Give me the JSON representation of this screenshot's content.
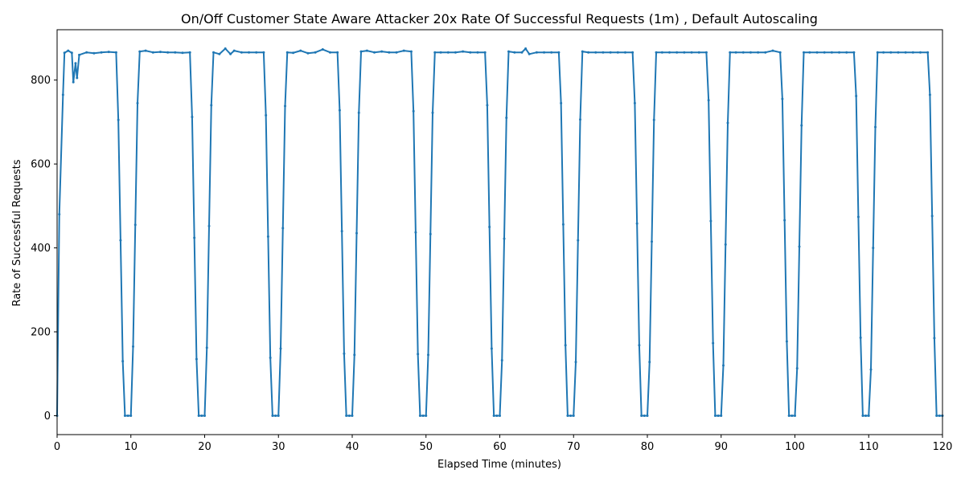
{
  "chart_data": {
    "type": "line",
    "title": "On/Off Customer State Aware Attacker 20x Rate Of Successful Requests (1m) , Default Autoscaling",
    "xlabel": "Elapsed Time (minutes)",
    "ylabel": "Rate of Successful Requests",
    "xlim": [
      0,
      120
    ],
    "ylim": [
      -45,
      920
    ],
    "xticks": [
      0,
      10,
      20,
      30,
      40,
      50,
      60,
      70,
      80,
      90,
      100,
      110,
      120
    ],
    "yticks": [
      0,
      200,
      400,
      600,
      800
    ],
    "grid": false,
    "legend": "none",
    "series": [
      {
        "color": "#1f77b4",
        "marker": "dot",
        "x": [
          0,
          0.3,
          0.8,
          1.0,
          1.5,
          2.0,
          2.2,
          2.5,
          2.7,
          3.0,
          4.0,
          5.0,
          6.0,
          7.0,
          8.0,
          8.3,
          8.6,
          8.9,
          9.2,
          9.6,
          10.0,
          10.3,
          10.6,
          10.9,
          11.2,
          12,
          13,
          14,
          15,
          16,
          17,
          18,
          18.3,
          18.6,
          18.9,
          19.2,
          19.6,
          20.0,
          20.3,
          20.6,
          20.9,
          21.2,
          22,
          22.8,
          23.5,
          24,
          25,
          26,
          27,
          28,
          28.3,
          28.6,
          28.9,
          29.2,
          29.6,
          30.0,
          30.3,
          30.6,
          30.9,
          31.2,
          32,
          33,
          34,
          35,
          36,
          37,
          38,
          38.3,
          38.6,
          38.9,
          39.2,
          39.6,
          40.0,
          40.3,
          40.6,
          40.9,
          41.2,
          42,
          43,
          44,
          45,
          46,
          47,
          48,
          48.3,
          48.6,
          48.9,
          49.2,
          49.6,
          50.0,
          50.3,
          50.6,
          50.9,
          51.2,
          52,
          53,
          54,
          55,
          56,
          57,
          58,
          58.3,
          58.6,
          58.9,
          59.2,
          59.6,
          60.0,
          60.3,
          60.6,
          60.9,
          61.2,
          62,
          63,
          63.5,
          64,
          65,
          66,
          67,
          68,
          68.3,
          68.6,
          68.9,
          69.2,
          69.6,
          70.0,
          70.3,
          70.6,
          70.9,
          71.2,
          72,
          73,
          74,
          75,
          76,
          77,
          78,
          78.3,
          78.6,
          78.9,
          79.2,
          79.6,
          80.0,
          80.3,
          80.6,
          80.9,
          81.2,
          82,
          83,
          84,
          85,
          86,
          87,
          88,
          88.3,
          88.6,
          88.9,
          89.2,
          89.6,
          90.0,
          90.3,
          90.6,
          90.9,
          91.2,
          92,
          93,
          94,
          95,
          96,
          97,
          98,
          98.3,
          98.6,
          98.9,
          99.2,
          99.6,
          100.0,
          100.3,
          100.6,
          100.9,
          101.2,
          102,
          103,
          104,
          105,
          106,
          107,
          108,
          108.3,
          108.6,
          108.9,
          109.2,
          109.6,
          110.0,
          110.3,
          110.6,
          110.9,
          111.2,
          112,
          113,
          114,
          115,
          116,
          117,
          118,
          118.3,
          118.6,
          118.9,
          119.2,
          119.6,
          120.0
        ],
        "y": [
          0,
          480,
          765,
          865,
          870,
          865,
          795,
          840,
          805,
          860,
          866,
          864,
          866,
          867,
          866,
          705,
          418,
          130,
          0,
          0,
          0,
          165,
          455,
          745,
          868,
          870,
          866,
          867,
          866,
          866,
          865,
          866,
          712,
          424,
          135,
          0,
          0,
          0,
          162,
          452,
          740,
          866,
          862,
          875,
          862,
          870,
          866,
          866,
          866,
          866,
          716,
          427,
          138,
          0,
          0,
          0,
          160,
          447,
          738,
          866,
          865,
          870,
          864,
          866,
          873,
          866,
          866,
          728,
          440,
          148,
          0,
          0,
          0,
          145,
          435,
          722,
          868,
          870,
          866,
          868,
          866,
          866,
          870,
          868,
          726,
          437,
          147,
          0,
          0,
          0,
          145,
          433,
          722,
          866,
          866,
          866,
          866,
          868,
          866,
          866,
          866,
          740,
          450,
          160,
          0,
          0,
          0,
          132,
          422,
          710,
          868,
          866,
          866,
          875,
          862,
          866,
          866,
          866,
          866,
          745,
          456,
          168,
          0,
          0,
          0,
          128,
          418,
          706,
          868,
          866,
          866,
          866,
          866,
          866,
          866,
          866,
          745,
          458,
          168,
          0,
          0,
          0,
          128,
          415,
          705,
          866,
          866,
          866,
          866,
          866,
          866,
          866,
          866,
          752,
          464,
          173,
          0,
          0,
          0,
          120,
          408,
          698,
          866,
          866,
          866,
          866,
          866,
          866,
          870,
          866,
          755,
          466,
          177,
          0,
          0,
          0,
          113,
          403,
          692,
          866,
          866,
          866,
          866,
          866,
          866,
          866,
          866,
          762,
          474,
          186,
          0,
          0,
          0,
          110,
          400,
          688,
          866,
          866,
          866,
          866,
          866,
          866,
          866,
          866,
          765,
          476,
          185,
          0,
          0,
          0
        ]
      }
    ]
  }
}
